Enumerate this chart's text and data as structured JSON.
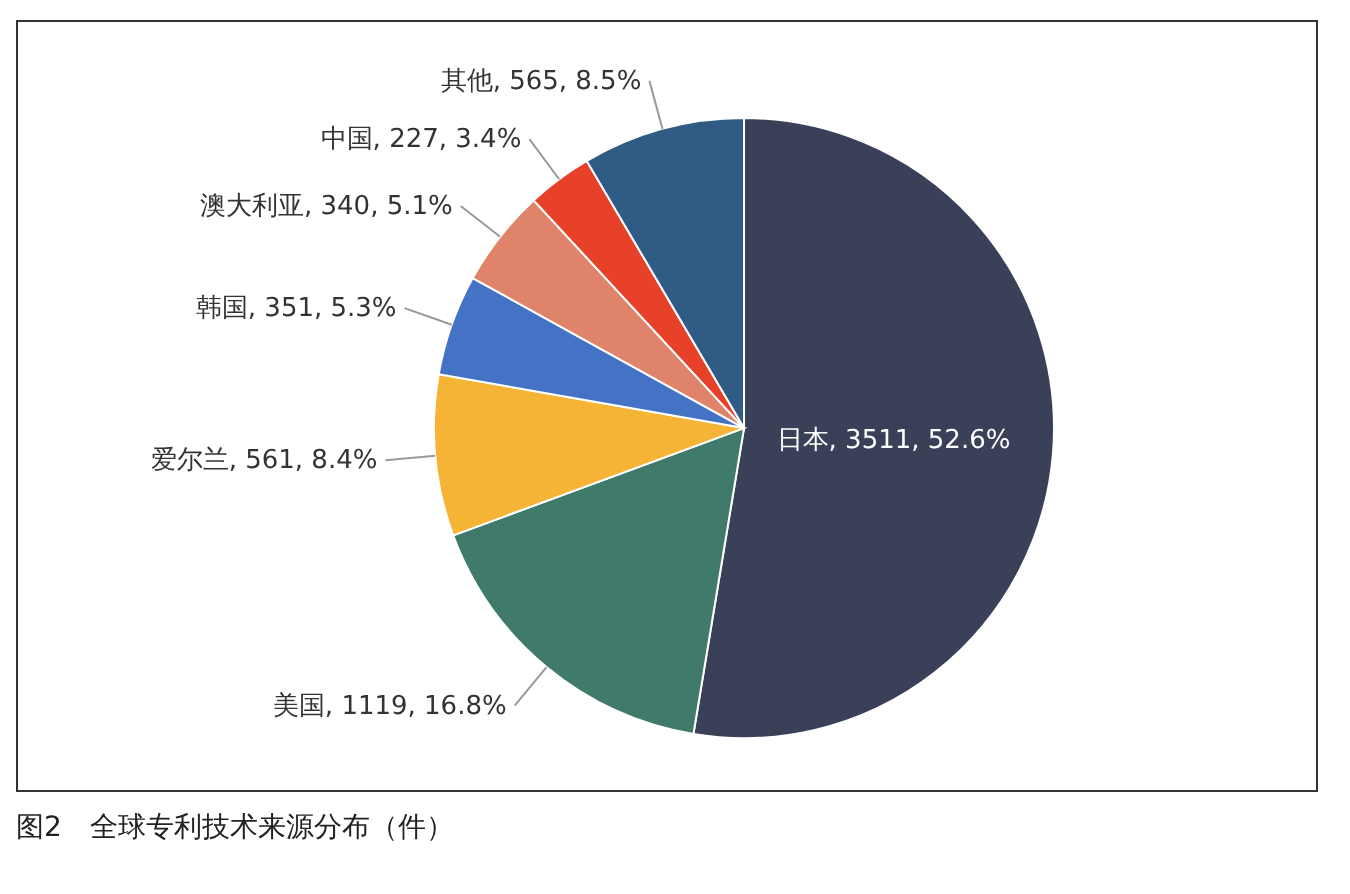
{
  "chart_data": {
    "type": "pie",
    "categories": [
      "日本",
      "美国",
      "爱尔兰",
      "韩国",
      "澳大利亚",
      "中国",
      "其他"
    ],
    "values": [
      3511,
      1119,
      561,
      351,
      340,
      227,
      565
    ],
    "colors": [
      "#3a4057",
      "#3f7a6b",
      "#f5b435",
      "#4472c4",
      "#e0836b",
      "#e8412a",
      "#2f5b85"
    ],
    "value_labels": [
      "3511, 52.6%",
      "1119, 16.8%",
      "561, 8.4%",
      "351, 5.3%",
      "340, 5.1%",
      "227, 3.4%",
      "565, 8.5%"
    ],
    "annotations": [
      "图2　全球专利技术来源分布（件）"
    ]
  }
}
